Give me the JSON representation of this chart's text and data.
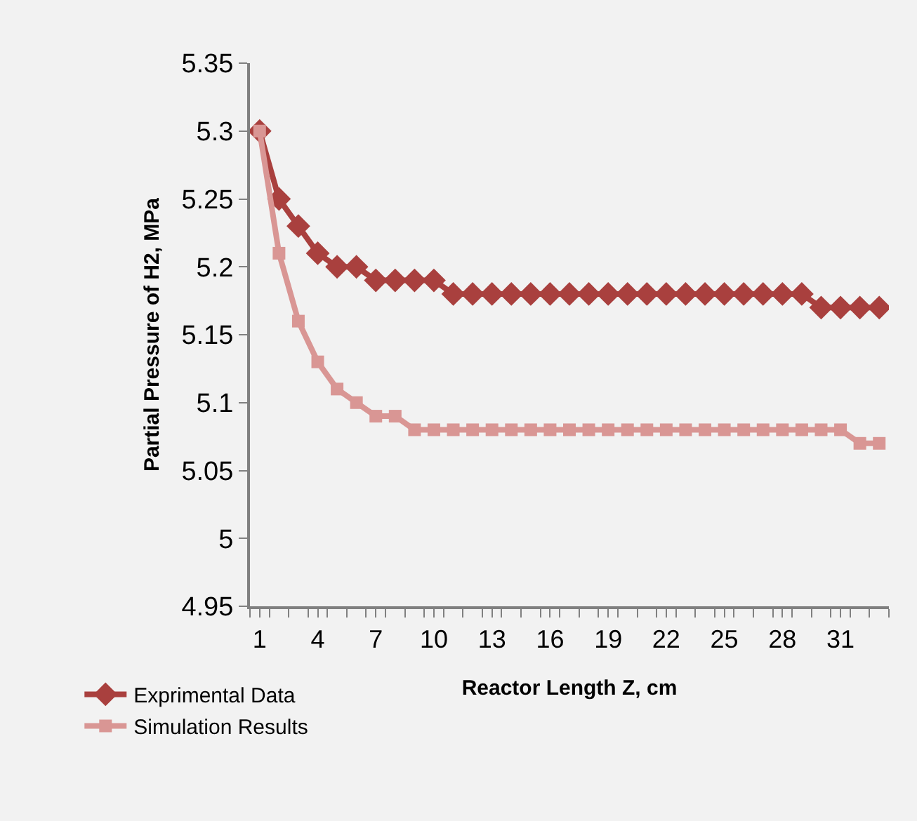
{
  "chart_data": {
    "type": "line",
    "xlabel": "Reactor Length Z, cm",
    "ylabel": "Partial Pressure of H2, MPa",
    "categories": [
      "1",
      null,
      null,
      "4",
      null,
      null,
      "7",
      null,
      null,
      "10",
      null,
      null,
      "13",
      null,
      null,
      "16",
      null,
      null,
      "19",
      null,
      null,
      "22",
      null,
      null,
      "25",
      null,
      null,
      "28",
      null,
      null,
      "31",
      null,
      null
    ],
    "series": [
      {
        "name": "Exprimental Data",
        "color": "#a9403e",
        "marker": "diamond",
        "values": [
          5.3,
          5.25,
          5.23,
          5.21,
          5.2,
          5.2,
          5.19,
          5.19,
          5.19,
          5.19,
          5.18,
          5.18,
          5.18,
          5.18,
          5.18,
          5.18,
          5.18,
          5.18,
          5.18,
          5.18,
          5.18,
          5.18,
          5.18,
          5.18,
          5.18,
          5.18,
          5.18,
          5.18,
          5.18,
          5.17,
          5.17,
          5.17,
          5.17
        ]
      },
      {
        "name": "Simulation Results",
        "color": "#d99694",
        "marker": "square",
        "values": [
          5.3,
          5.21,
          5.16,
          5.13,
          5.11,
          5.1,
          5.09,
          5.09,
          5.08,
          5.08,
          5.08,
          5.08,
          5.08,
          5.08,
          5.08,
          5.08,
          5.08,
          5.08,
          5.08,
          5.08,
          5.08,
          5.08,
          5.08,
          5.08,
          5.08,
          5.08,
          5.08,
          5.08,
          5.08,
          5.08,
          5.08,
          5.07,
          5.07
        ]
      }
    ],
    "ylim": [
      4.95,
      5.35
    ],
    "yticks": [
      4.95,
      5,
      5.05,
      5.1,
      5.15,
      5.2,
      5.25,
      5.3,
      5.35
    ],
    "grid": false,
    "legend": "bottom left",
    "line_style": "solid"
  }
}
